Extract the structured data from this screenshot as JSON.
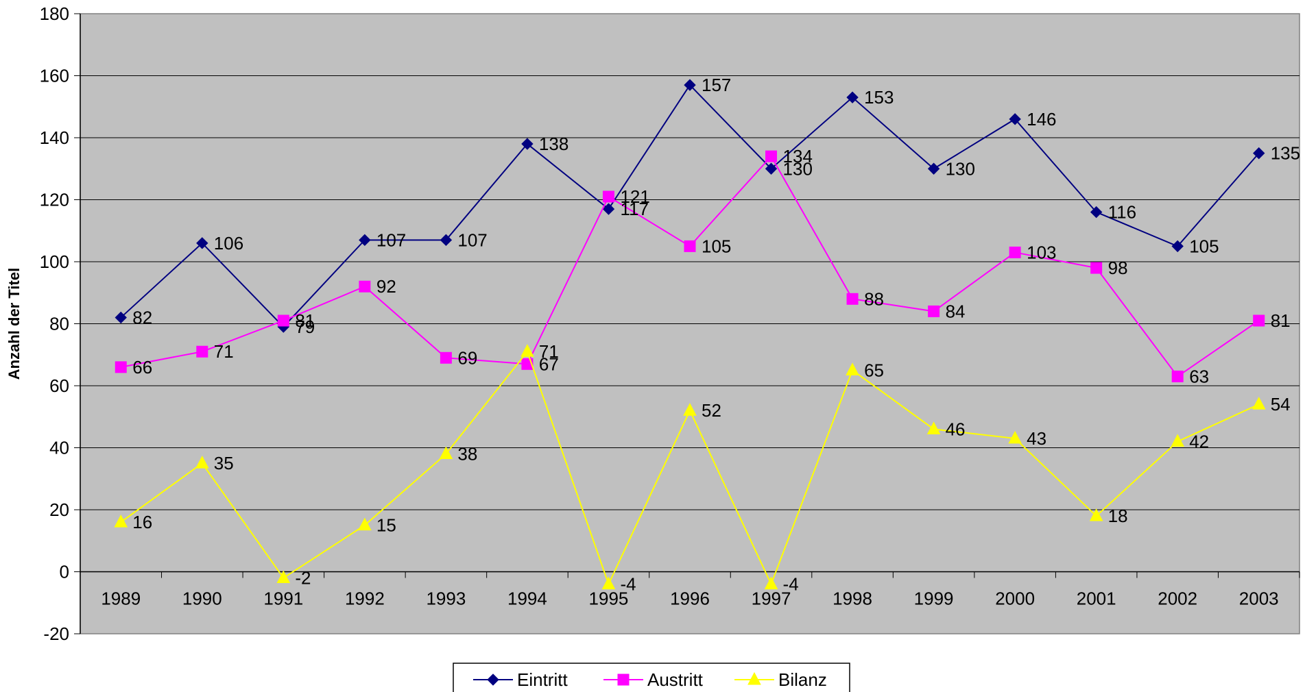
{
  "colors": {
    "plot_background": "#C0C0C0",
    "gridline": "#000000",
    "series": [
      "#000080",
      "#FF00FF",
      "#FFFF00"
    ]
  },
  "chart_data": {
    "type": "line",
    "categories": [
      "1989",
      "1990",
      "1991",
      "1992",
      "1993",
      "1994",
      "1995",
      "1996",
      "1997",
      "1998",
      "1999",
      "2000",
      "2001",
      "2002",
      "2003"
    ],
    "series": [
      {
        "name": "Eintritt",
        "marker": "diamond",
        "values": [
          82,
          106,
          79,
          107,
          107,
          138,
          117,
          157,
          130,
          153,
          130,
          146,
          116,
          105,
          135
        ]
      },
      {
        "name": "Austritt",
        "marker": "square",
        "values": [
          66,
          71,
          81,
          92,
          69,
          67,
          121,
          105,
          134,
          88,
          84,
          103,
          98,
          63,
          81
        ]
      },
      {
        "name": "Bilanz",
        "marker": "triangle",
        "values": [
          16,
          35,
          -2,
          15,
          38,
          71,
          -4,
          52,
          -4,
          65,
          46,
          43,
          18,
          42,
          54
        ]
      }
    ],
    "ylabel": "Anzahl der Titel",
    "xlabel": "",
    "ylim": [
      -20,
      180
    ],
    "yticks": [
      -20,
      0,
      20,
      40,
      60,
      80,
      100,
      120,
      140,
      160,
      180
    ],
    "grid": true,
    "legend_position": "bottom",
    "data_labels": true
  }
}
